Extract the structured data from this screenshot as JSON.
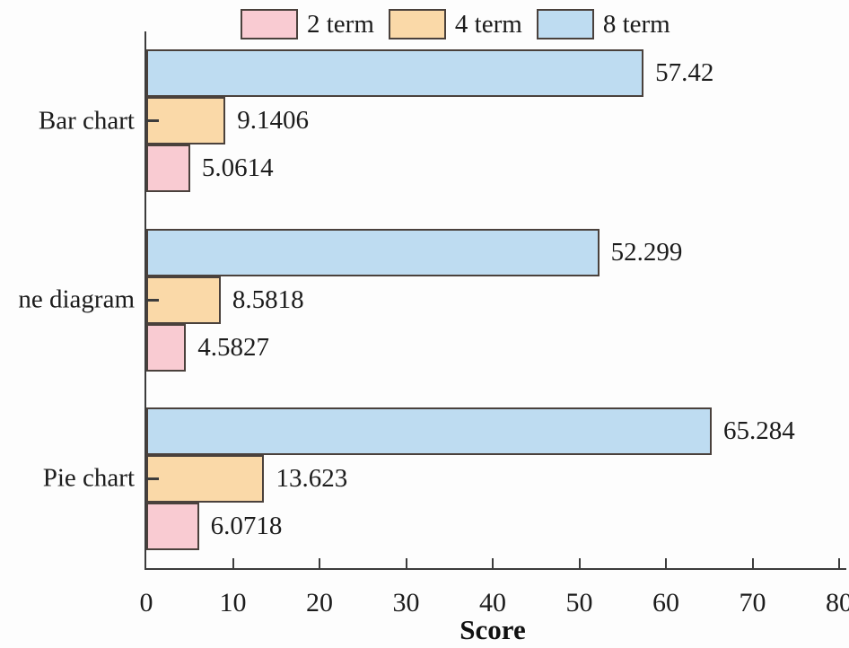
{
  "chart_data": {
    "type": "bar",
    "orientation": "horizontal",
    "title": "",
    "xlabel": "Score",
    "ylabel": "",
    "xlim": [
      0,
      80
    ],
    "x_ticks": [
      "0",
      "10",
      "20",
      "30",
      "40",
      "50",
      "60",
      "70",
      "80"
    ],
    "grid": false,
    "legend_position": "top",
    "categories": [
      "Bar chart",
      "ne diagram",
      "Pie chart"
    ],
    "series": [
      {
        "name": "2 term",
        "color": "#f9cbd2",
        "values": [
          5.0614,
          4.5827,
          6.0718
        ],
        "labels": [
          "5.0614",
          "4.5827",
          "6.0718"
        ]
      },
      {
        "name": "4 term",
        "color": "#fad9a8",
        "values": [
          9.1406,
          8.5818,
          13.623
        ],
        "labels": [
          "9.1406",
          "8.5818",
          "13.623"
        ]
      },
      {
        "name": "8 term",
        "color": "#bedcf1",
        "values": [
          57.42,
          52.299,
          65.284
        ],
        "labels": [
          "57.42",
          "52.299",
          "65.284"
        ]
      }
    ],
    "bar_order_top_to_bottom": [
      "8 term",
      "4 term",
      "2 term"
    ],
    "colors": {
      "bar_border": "#4a413c",
      "axis": "#3c3c3c",
      "text": "#1c1c1c",
      "background": "#fdfdfd"
    }
  }
}
